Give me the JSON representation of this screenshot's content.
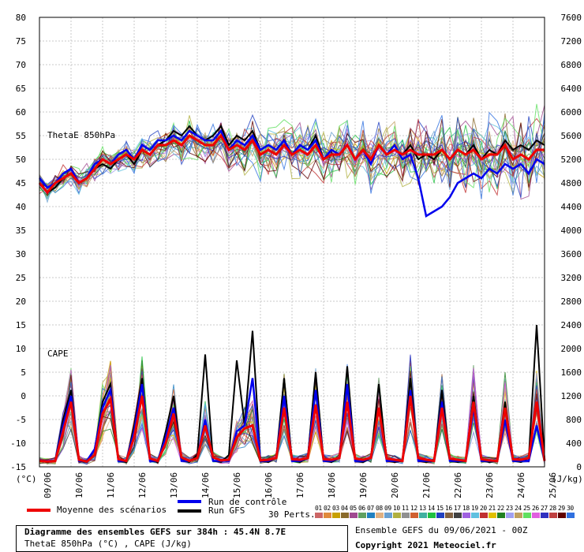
{
  "chart_data": {
    "type": "line",
    "title": "Diagramme des ensembles GEFS sur 384h : 45.4N 8.7E",
    "subtitle": "ThetaE 850hPa (°C) , CAPE (J/kg)",
    "left_axis_label": "(°C)",
    "right_axis_label": "(J/kg)",
    "ylim_left": [
      -15,
      80
    ],
    "ylim_right": [
      0,
      7600
    ],
    "left_ticks": [
      "80",
      "75",
      "70",
      "65",
      "60",
      "55",
      "50",
      "45",
      "40",
      "35",
      "30",
      "25",
      "20",
      "15",
      "10",
      "5",
      "0",
      "-5",
      "-10",
      "-15"
    ],
    "right_ticks": [
      "7600",
      "7200",
      "6800",
      "6400",
      "6000",
      "5600",
      "5200",
      "4800",
      "4400",
      "4000",
      "3600",
      "3200",
      "2800",
      "2400",
      "2000",
      "1600",
      "1200",
      "800",
      "400",
      "0"
    ],
    "x_labels": [
      "09/06",
      "10/06",
      "11/06",
      "12/06",
      "13/06",
      "14/06",
      "15/06",
      "16/06",
      "17/06",
      "18/06",
      "19/06",
      "20/06",
      "21/06",
      "22/06",
      "23/06",
      "24/06",
      "25/06"
    ],
    "panel_labels": [
      "ThetaE 850hPa",
      "CAPE"
    ],
    "series": [
      {
        "name": "Moyenne des scénarios",
        "color": "#ee0000",
        "thetae": [
          45,
          43,
          45,
          46,
          47,
          45,
          46,
          48,
          50,
          49,
          50,
          51,
          50,
          52,
          51,
          53,
          53,
          54,
          53,
          55,
          54,
          53,
          53,
          55,
          52,
          53,
          52,
          54,
          51,
          52,
          51,
          53,
          51,
          52,
          51,
          53,
          50,
          51,
          51,
          53,
          50,
          52,
          50,
          53,
          51,
          52,
          51,
          52,
          51,
          51,
          51,
          52,
          50,
          52,
          51,
          52,
          50,
          51,
          51,
          53,
          50,
          51,
          50,
          52,
          52
        ],
        "cape": [
          100,
          90,
          100,
          600,
          1100,
          120,
          90,
          200,
          900,
          1150,
          130,
          100,
          500,
          1200,
          140,
          100,
          400,
          900,
          160,
          100,
          150,
          700,
          160,
          110,
          120,
          500,
          650,
          700,
          110,
          120,
          150,
          1000,
          130,
          120,
          150,
          1050,
          130,
          120,
          150,
          1100,
          140,
          120,
          150,
          1000,
          140,
          120,
          100,
          1200,
          150,
          120,
          100,
          1000,
          140,
          120,
          100,
          1100,
          130,
          110,
          100,
          1000,
          130,
          120,
          150,
          1100,
          100
        ]
      },
      {
        "name": "Run de contrôle",
        "color": "#0000ee",
        "thetae": [
          46,
          44,
          45,
          47,
          48,
          45,
          46,
          49,
          50,
          49,
          51,
          52,
          50,
          53,
          52,
          54,
          54,
          55,
          54,
          56,
          55,
          54,
          54,
          56,
          52,
          54,
          53,
          55,
          52,
          53,
          52,
          54,
          51,
          53,
          52,
          54,
          50,
          52,
          51,
          53,
          50,
          52,
          49,
          53,
          51,
          53,
          50,
          51,
          46,
          38,
          39,
          40,
          42,
          45,
          46,
          47,
          46,
          48,
          47,
          49,
          48,
          49,
          47,
          50,
          49
        ],
        "cape": [
          100,
          100,
          100,
          700,
          1200,
          100,
          100,
          300,
          1000,
          1300,
          100,
          100,
          600,
          1400,
          100,
          100,
          500,
          1000,
          100,
          100,
          150,
          800,
          100,
          100,
          100,
          600,
          700,
          1500,
          100,
          100,
          150,
          1200,
          100,
          100,
          150,
          1300,
          100,
          100,
          150,
          1400,
          100,
          100,
          150,
          1000,
          100,
          100,
          100,
          1300,
          100,
          100,
          100,
          1100,
          100,
          100,
          100,
          1000,
          100,
          100,
          100,
          800,
          100,
          100,
          100,
          700,
          100
        ]
      },
      {
        "name": "Run GFS",
        "color": "#000000",
        "thetae": [
          45,
          43,
          44,
          46,
          47,
          45,
          46,
          48,
          49,
          48,
          50,
          51,
          49,
          52,
          51,
          53,
          54,
          56,
          55,
          57,
          55,
          54,
          55,
          57,
          53,
          55,
          54,
          56,
          52,
          53,
          52,
          54,
          51,
          53,
          52,
          55,
          50,
          52,
          51,
          53,
          50,
          52,
          50,
          53,
          51,
          52,
          51,
          53,
          50,
          51,
          50,
          52,
          50,
          52,
          51,
          53,
          50,
          52,
          51,
          54,
          52,
          53,
          52,
          54,
          53
        ],
        "cape": [
          100,
          80,
          100,
          800,
          1300,
          100,
          80,
          300,
          1100,
          1400,
          100,
          80,
          700,
          1500,
          100,
          80,
          600,
          1200,
          100,
          80,
          200,
          1900,
          100,
          80,
          200,
          1800,
          700,
          2300,
          100,
          80,
          150,
          1500,
          100,
          80,
          150,
          1600,
          100,
          80,
          150,
          1700,
          100,
          80,
          150,
          1400,
          100,
          80,
          100,
          1500,
          100,
          80,
          100,
          1300,
          100,
          80,
          100,
          1200,
          100,
          80,
          100,
          1100,
          100,
          80,
          150,
          2400,
          100
        ]
      }
    ],
    "perturbation_count_label": "30 Perts."
  },
  "legend": {
    "mean_label": "Moyenne des scénarios",
    "control_label": "Run de contrôle",
    "gfs_label": "Run GFS",
    "perts_label": "30 Perts.",
    "pert_numbers": [
      "01",
      "02",
      "03",
      "04",
      "05",
      "06",
      "07",
      "08",
      "09",
      "10",
      "11",
      "12",
      "13",
      "14",
      "15",
      "16",
      "17",
      "18",
      "19",
      "20",
      "21",
      "22",
      "23",
      "24",
      "25",
      "26",
      "27",
      "28",
      "29",
      "30"
    ],
    "pert_colors": [
      "#cc6666",
      "#e08a3c",
      "#c8a000",
      "#8a6a2a",
      "#a04a90",
      "#60a060",
      "#2080c0",
      "#e0b080",
      "#6aa0d0",
      "#b0b040",
      "#909090",
      "#d06030",
      "#40b0a0",
      "#20c040",
      "#2040c0",
      "#806040",
      "#404040",
      "#a060e0",
      "#60c0e0",
      "#c03030",
      "#e0c000",
      "#208020",
      "#a0a0f0",
      "#c0a060",
      "#60e060",
      "#e060e0",
      "#3030c0",
      "#c04040",
      "#600000",
      "#3070e0"
    ]
  },
  "info": {
    "line1": "Diagramme des ensembles GEFS sur 384h : 45.4N 8.7E",
    "line2": "ThetaE 850hPa (°C) , CAPE (J/kg)",
    "ensemble": "Ensemble GEFS du 09/06/2021 - 00Z",
    "copyright": "Copyright 2021 Meteociel.fr"
  }
}
